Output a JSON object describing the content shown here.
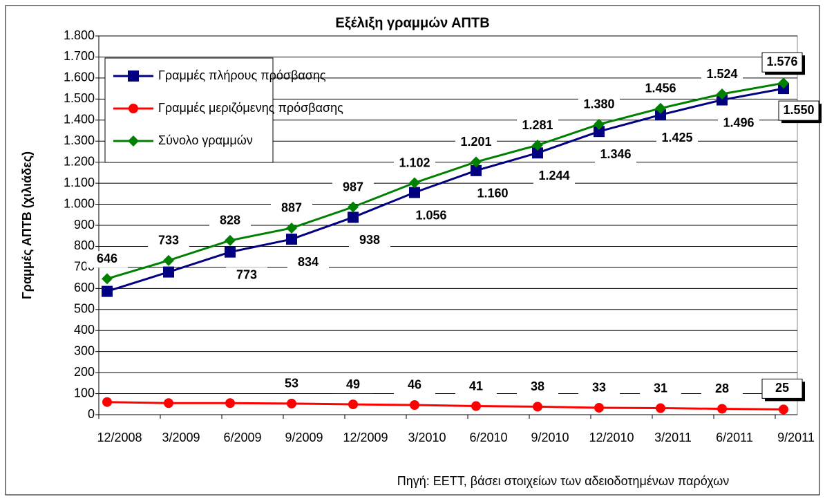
{
  "chart_data": {
    "type": "line",
    "title": "Εξέλιξη γραμμών ΑΠΤΒ",
    "y_label": "Γραμμές ΑΠΤΒ (χιλιάδες)",
    "source": "Πηγή: ΕΕΤΤ, βάσει στοιχείων των αδειοδοτημένων παρόχων",
    "categories": [
      "12/2008",
      "3/2009",
      "6/2009",
      "9/2009",
      "12/2009",
      "3/2010",
      "6/2010",
      "9/2010",
      "12/2010",
      "3/2011",
      "6/2011",
      "9/2011"
    ],
    "series": [
      {
        "name": "Γραμμές πλήρους πρόσβασης",
        "color": "#000080",
        "marker": "square",
        "values": [
          586,
          678,
          773,
          834,
          938,
          1056,
          1160,
          1244,
          1346,
          1425,
          1496,
          1550
        ],
        "value_labels": [
          null,
          null,
          "773",
          "834",
          "938",
          "1.056",
          "1.160",
          "1.244",
          "1.346",
          "1.425",
          "1.496",
          "1.550"
        ]
      },
      {
        "name": "Γραμμές μεριζόμενης πρόσβασης",
        "color": "#ff0000",
        "marker": "circle",
        "values": [
          60,
          55,
          55,
          53,
          49,
          46,
          41,
          38,
          33,
          31,
          28,
          25
        ],
        "value_labels": [
          null,
          null,
          null,
          "53",
          "49",
          "46",
          "41",
          "38",
          "33",
          "31",
          "28",
          "25"
        ]
      },
      {
        "name": "Σύνολο γραμμών",
        "color": "#008000",
        "marker": "diamond",
        "values": [
          646,
          733,
          828,
          887,
          987,
          1102,
          1201,
          1281,
          1380,
          1456,
          1524,
          1576
        ],
        "value_labels": [
          "646",
          "733",
          "828",
          "887",
          "987",
          "1.102",
          "1.201",
          "1.281",
          "1.380",
          "1.456",
          "1.524",
          "1.576"
        ]
      }
    ],
    "ylim": [
      0,
      1800
    ],
    "yticks": [
      0,
      100,
      200,
      300,
      400,
      500,
      600,
      700,
      800,
      900,
      {
        "value": 1000,
        "label": "1.000"
      },
      {
        "value": 1100,
        "label": "1.100"
      },
      {
        "value": 1200,
        "label": "1.200"
      },
      {
        "value": 1300,
        "label": "1.300"
      },
      {
        "value": 1400,
        "label": "1.400"
      },
      {
        "value": 1500,
        "label": "1.500"
      },
      {
        "value": 1600,
        "label": "1.600"
      },
      {
        "value": 1700,
        "label": "1.700"
      },
      {
        "value": 1800,
        "label": "1.800"
      }
    ],
    "grid": true,
    "legend": "upper left"
  }
}
